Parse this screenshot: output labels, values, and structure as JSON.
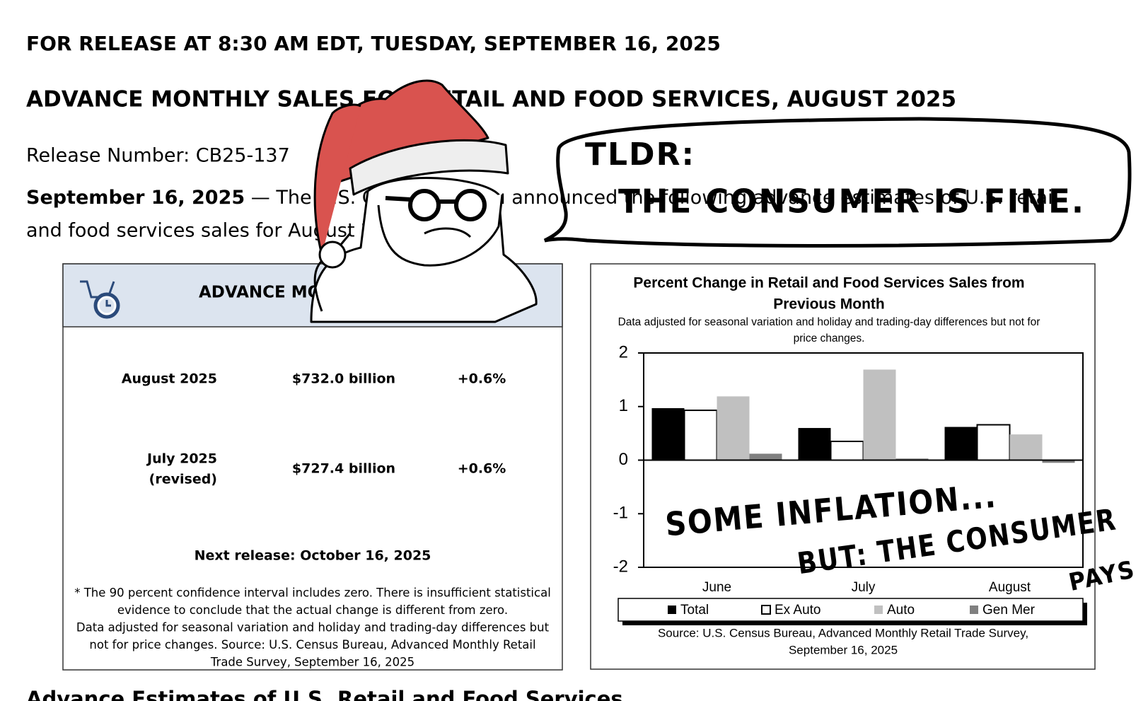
{
  "header": {
    "release_time": "FOR RELEASE AT 8:30 AM EDT, TUESDAY, SEPTEMBER 16, 2025",
    "title": "ADVANCE MONTHLY SALES FOR RETAIL AND FOOD SERVICES, AUGUST 2025",
    "release_number": "Release Number: CB25-137",
    "date": "September 16, 2025",
    "lead_1": "— The U.S. Census Bureau announced the following advance estimates of U.S. retail",
    "lead_2": "and food services sales for August 2025"
  },
  "summary_box": {
    "title": "ADVANCE MONTHLY SALES",
    "rows": [
      [
        "August 2025",
        "",
        "$732.0 billion",
        "+0.6%"
      ],
      [
        "July 2025",
        "(revised)",
        "$727.4 billion",
        "+0.6%"
      ]
    ],
    "next_release": "Next release: October 16, 2025",
    "footnote": [
      "* The 90 percent confidence interval includes zero. There is insufficient statistical",
      "evidence to conclude that the actual change is different from zero.",
      "Data adjusted for seasonal variation and holiday and trading-day differences but",
      "not for price changes. Source: U.S. Census Bureau, Advanced Monthly Retail",
      "Trade Survey, September 16, 2025"
    ]
  },
  "chart_data": {
    "type": "bar",
    "title": [
      "Percent Change in Retail and Food Services Sales from",
      "Previous Month"
    ],
    "subtitle": [
      "Data adjusted for seasonal variation and holiday and trading-day differences but not for",
      "price changes."
    ],
    "categories": [
      "June",
      "July",
      "August"
    ],
    "series": [
      {
        "name": "Total",
        "color": "#000000",
        "values": [
          0.97,
          0.6,
          0.62
        ]
      },
      {
        "name": "Ex Auto",
        "color": "#ffffff",
        "values": [
          0.93,
          0.35,
          0.66
        ]
      },
      {
        "name": "Auto",
        "color": "#c0c0c0",
        "values": [
          1.19,
          1.69,
          0.48
        ]
      },
      {
        "name": "Gen Mer",
        "color": "#808080",
        "values": [
          0.12,
          0.03,
          -0.05
        ]
      }
    ],
    "ylim": [
      -2,
      2
    ],
    "yticks": [
      -2,
      -1,
      0,
      1,
      2
    ],
    "source": [
      "Source: U.S. Census Bureau, Advanced Monthly Retail Trade Survey,",
      "September 16, 2025"
    ]
  },
  "annotations": {
    "tldr": "TLDR:",
    "bubble": "THE CONSUMER IS FINE.",
    "note_1": "SOME INFLATION...",
    "note_2": "BUT: THE CONSUMER",
    "note_3": "PAYS"
  },
  "next_section": "Advance Estimates of U.S. Retail and Food Services"
}
